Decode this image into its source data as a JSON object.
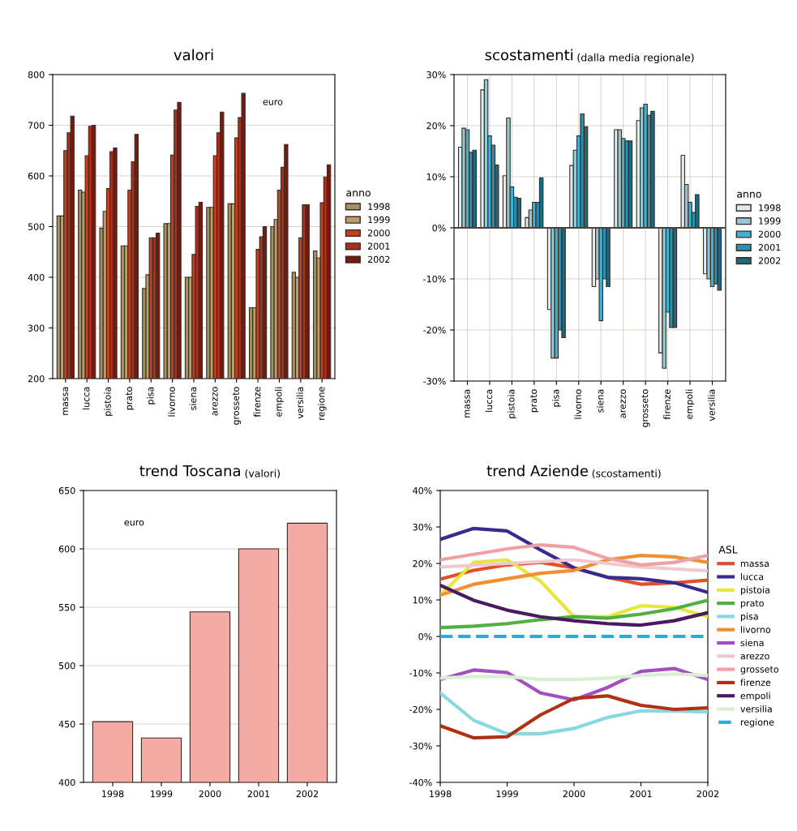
{
  "chart_data": [
    {
      "type": "bar",
      "title": "valori",
      "annotations": [
        "euro"
      ],
      "categories": [
        "massa",
        "lucca",
        "pistoia",
        "prato",
        "pisa",
        "livorno",
        "siena",
        "arezzo",
        "grosseto",
        "firenze",
        "empoli",
        "versilia",
        "regione"
      ],
      "ylim": [
        200,
        800
      ],
      "yticks": [
        200,
        300,
        400,
        500,
        600,
        700,
        800
      ],
      "grid": "y",
      "legend": "right",
      "legend_title": "anno",
      "series": [
        {
          "name": "1998",
          "color": "#a39262",
          "values": [
            521,
            572,
            497,
            462,
            378,
            506,
            400,
            538,
            545,
            340,
            500,
            410,
            452
          ]
        },
        {
          "name": "1999",
          "color": "#b8a070",
          "values": [
            521,
            568,
            530,
            462,
            405,
            506,
            400,
            538,
            545,
            340,
            514,
            400,
            438
          ]
        },
        {
          "name": "2000",
          "color": "#c4401f",
          "values": [
            650,
            640,
            575,
            572,
            478,
            641,
            445,
            640,
            675,
            455,
            572,
            478,
            547
          ]
        },
        {
          "name": "2001",
          "color": "#a83020",
          "values": [
            685,
            698,
            648,
            628,
            478,
            730,
            540,
            685,
            715,
            480,
            617,
            543,
            598
          ]
        },
        {
          "name": "2002",
          "color": "#761a10",
          "values": [
            718,
            700,
            655,
            682,
            487,
            745,
            548,
            726,
            763,
            500,
            662,
            543,
            622
          ]
        }
      ]
    },
    {
      "type": "bar",
      "title": "scostamenti",
      "subtitle": "(dalla media regionale)",
      "categories": [
        "massa",
        "lucca",
        "pistoia",
        "prato",
        "pisa",
        "livorno",
        "siena",
        "arezzo",
        "grosseto",
        "firenze",
        "empoli",
        "versilia"
      ],
      "ylim": [
        -30,
        30
      ],
      "yticks": [
        {
          "value": -30,
          "label": "-30%"
        },
        {
          "value": -20,
          "label": "-20%"
        },
        {
          "value": -10,
          "label": "-10%"
        },
        {
          "value": 0,
          "label": "0%"
        },
        {
          "value": 10,
          "label": "10%"
        },
        {
          "value": 20,
          "label": "20%"
        },
        {
          "value": 30,
          "label": "30%"
        }
      ],
      "grid": true,
      "legend": "right",
      "legend_title": "anno",
      "ref_lines": [
        {
          "axis": "y",
          "value": 0,
          "color": "#5a3a30"
        }
      ],
      "series": [
        {
          "name": "1998",
          "color": "#d8eef2",
          "values": [
            15.8,
            27,
            10.2,
            2,
            -16,
            12.2,
            -11.5,
            19.2,
            21,
            -24.5,
            14.2,
            -9
          ]
        },
        {
          "name": "1999",
          "color": "#98c8d4",
          "values": [
            19.5,
            29,
            21.5,
            3.5,
            -25.5,
            15.2,
            -10,
            19.2,
            23.5,
            -27.5,
            8.5,
            -10
          ]
        },
        {
          "name": "2000",
          "color": "#3cb4d8",
          "values": [
            19.2,
            18,
            8,
            5,
            -25.5,
            18,
            -18.2,
            17.5,
            24.2,
            -16.5,
            5,
            -11.5
          ]
        },
        {
          "name": "2001",
          "color": "#2890b0",
          "values": [
            14.8,
            16.2,
            6,
            5,
            -20,
            22.3,
            -10,
            17,
            22,
            -19.5,
            3,
            -11
          ]
        },
        {
          "name": "2002",
          "color": "#1a6a80",
          "values": [
            15.2,
            12.3,
            5.8,
            9.8,
            -21.5,
            19.8,
            -11.5,
            17,
            22.8,
            -19.5,
            6.5,
            -12.2
          ]
        }
      ]
    },
    {
      "type": "bar",
      "title": "trend Toscana",
      "subtitle": "(valori)",
      "annotations": [
        "euro"
      ],
      "categories": [
        "1998",
        "1999",
        "2000",
        "2001",
        "2002"
      ],
      "ylim": [
        400,
        650
      ],
      "yticks": [
        400,
        450,
        500,
        550,
        600,
        650
      ],
      "grid": "y",
      "series": [
        {
          "color": "#f5aba5",
          "values": [
            452,
            438,
            546,
            600,
            622
          ]
        }
      ]
    },
    {
      "type": "line",
      "title": "trend Aziende",
      "subtitle": "(scostamenti)",
      "x": [
        1998,
        1998.5,
        1999,
        1999.5,
        2000,
        2000.5,
        2001,
        2001.5,
        2002
      ],
      "xlim": [
        1998,
        2002
      ],
      "xticks": [
        1998,
        1999,
        2000,
        2001,
        2002
      ],
      "ylim": [
        -40,
        40
      ],
      "yticks": [
        {
          "value": -40,
          "label": "-40%"
        },
        {
          "value": -30,
          "label": "-30%"
        },
        {
          "value": -20,
          "label": "-20%"
        },
        {
          "value": -10,
          "label": "-10%"
        },
        {
          "value": 0,
          "label": "0%"
        },
        {
          "value": 10,
          "label": "10%"
        },
        {
          "value": 20,
          "label": "20%"
        },
        {
          "value": 30,
          "label": "30%"
        },
        {
          "value": 40,
          "label": "40%"
        }
      ],
      "grid": false,
      "legend": "right",
      "legend_title": "ASL",
      "line_style": "solid",
      "marker": "none",
      "series": [
        {
          "name": "massa",
          "color": "#e0502c",
          "values": [
            15.7,
            18.1,
            19.6,
            20.3,
            18.8,
            16.2,
            14.3,
            14.7,
            15.4
          ]
        },
        {
          "name": "lucca",
          "color": "#3a2a90",
          "values": [
            26.6,
            29.6,
            28.9,
            23.7,
            18.8,
            16.2,
            15.8,
            14.7,
            12.1
          ]
        },
        {
          "name": "pistoia",
          "color": "#e6e63c",
          "values": [
            11.3,
            20.3,
            21.0,
            15.1,
            5.4,
            5.4,
            8.4,
            8.0,
            5.4
          ]
        },
        {
          "name": "prato",
          "color": "#50b040",
          "values": [
            2.4,
            2.8,
            3.5,
            4.6,
            5.4,
            5.0,
            6.1,
            7.6,
            9.9
          ]
        },
        {
          "name": "pisa",
          "color": "#88d8e0",
          "values": [
            -15.5,
            -23,
            -26.7,
            -26.7,
            -25.2,
            -22.2,
            -20.4,
            -20.4,
            -20.7
          ]
        },
        {
          "name": "livorno",
          "color": "#f09030",
          "values": [
            11.3,
            14.3,
            15.8,
            17.3,
            18.1,
            21.0,
            22.2,
            21.8,
            20.3
          ]
        },
        {
          "name": "siena",
          "color": "#a050c0",
          "values": [
            -11.8,
            -9.2,
            -9.9,
            -15.5,
            -17.4,
            -14.0,
            -9.6,
            -8.8,
            -11.8
          ]
        },
        {
          "name": "arezzo",
          "color": "#f0c8d0",
          "values": [
            19,
            19.5,
            20,
            20.5,
            21,
            20,
            19,
            18.5,
            18
          ]
        },
        {
          "name": "grosseto",
          "color": "#f0a0a0",
          "values": [
            21,
            22.5,
            24,
            25.1,
            24.4,
            21.4,
            19.6,
            20.3,
            22.2
          ]
        },
        {
          "name": "firenze",
          "color": "#b03010",
          "values": [
            -24.5,
            -27.8,
            -27.5,
            -21.5,
            -17,
            -16.3,
            -18.9,
            -20,
            -19.6
          ]
        },
        {
          "name": "empoli",
          "color": "#4a1a60",
          "values": [
            14,
            9.9,
            7.2,
            5.4,
            4.3,
            3.5,
            3.1,
            4.3,
            6.5
          ]
        },
        {
          "name": "versilia",
          "color": "#d8f0d0",
          "values": [
            -11.4,
            -11,
            -11,
            -11.8,
            -11.8,
            -11.4,
            -10.7,
            -10.3,
            -10.7
          ]
        },
        {
          "name": "regione",
          "color": "#30a8d8",
          "line_style": "dashed",
          "values": [
            0,
            0,
            0,
            0,
            0,
            0,
            0,
            0,
            0
          ]
        }
      ]
    }
  ]
}
